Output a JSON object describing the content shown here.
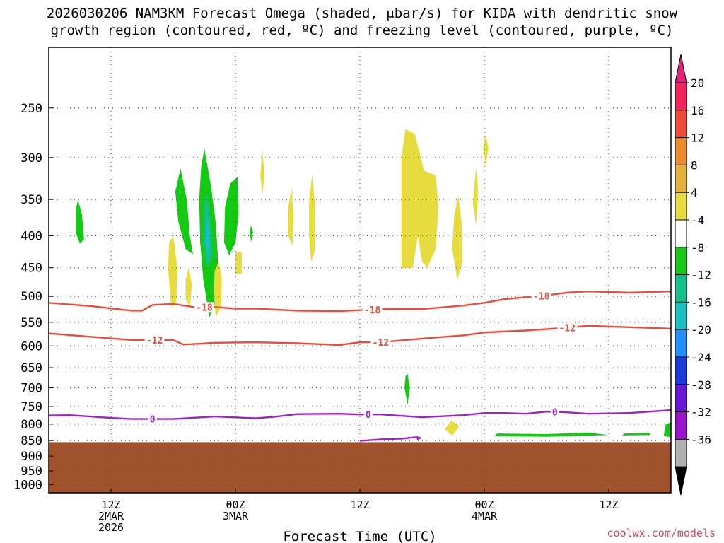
{
  "title_line1": "2026030206 NAM3KM Forecast Omega (shaded, μbar/s) for KIDA with dendritic snow",
  "title_line2": "growth region (contoured, red, ºC) and freezing level (contoured, purple, ºC)",
  "credit": "coolwx.com/models",
  "chart_data": {
    "type": "time-height cross section",
    "title": "2026030206 NAM3KM Forecast Omega (shaded, μbar/s) for KIDA with dendritic snow growth region (contoured, red, ºC) and freezing level (contoured, purple, ºC)",
    "xlabel": "Forecast Time (UTC)",
    "ylabel": "",
    "x_range_hours": [
      0,
      60
    ],
    "y_axis": {
      "scale": "log-pressure",
      "range_mb": [
        200,
        1030
      ],
      "ticks": [
        250,
        300,
        350,
        400,
        450,
        500,
        550,
        600,
        650,
        700,
        750,
        800,
        850,
        900,
        950,
        1000
      ]
    },
    "x_ticks": [
      {
        "hour": 6,
        "label": [
          "12Z",
          "2MAR",
          "2026"
        ]
      },
      {
        "hour": 18,
        "label": [
          "00Z",
          "3MAR"
        ]
      },
      {
        "hour": 30,
        "label": [
          "12Z"
        ]
      },
      {
        "hour": 42,
        "label": [
          "00Z",
          "4MAR"
        ]
      },
      {
        "hour": 54,
        "label": [
          "12Z"
        ]
      }
    ],
    "grid": true,
    "terrain_pressure_mb": 855,
    "colorbar": {
      "labels": [
        "20",
        "16",
        "12",
        "8",
        "4",
        "-4",
        "-8",
        "-12",
        "-16",
        "-20",
        "-24",
        "-28",
        "-32",
        "-36"
      ],
      "colors": [
        "#f2245b",
        "#ef4a3a",
        "#ef8a2a",
        "#e6b13a",
        "#e6dc40",
        "#ffffff",
        "#14c814",
        "#14c08a",
        "#18c0c0",
        "#1e90ff",
        "#1a3cdc",
        "#6a18d8",
        "#9c14cc",
        "#b0b0b0"
      ],
      "top_color": "#e8207a",
      "bottom_color": "#000000"
    },
    "contours": [
      {
        "name": "-18",
        "color": "#ef4a3a",
        "labels": [
          {
            "hour": 15.0,
            "text": "-18"
          },
          {
            "hour": 31.2,
            "text": "-18"
          },
          {
            "hour": 47.5,
            "text": "-18"
          }
        ],
        "points": [
          [
            0,
            512
          ],
          [
            4,
            518
          ],
          [
            8,
            527
          ],
          [
            9,
            527
          ],
          [
            10,
            516
          ],
          [
            12,
            514
          ],
          [
            14,
            520
          ],
          [
            16,
            520
          ],
          [
            18,
            523
          ],
          [
            20,
            523
          ],
          [
            24,
            527
          ],
          [
            28,
            528
          ],
          [
            32,
            524
          ],
          [
            36,
            524
          ],
          [
            40,
            517
          ],
          [
            42,
            512
          ],
          [
            44,
            505
          ],
          [
            48,
            498
          ],
          [
            50,
            493
          ],
          [
            52,
            491
          ],
          [
            56,
            493
          ],
          [
            60,
            491
          ]
        ]
      },
      {
        "name": "-12",
        "color": "#ef4a3a",
        "labels": [
          {
            "hour": 10.2,
            "text": "-12"
          },
          {
            "hour": 32.0,
            "text": "-12"
          },
          {
            "hour": 50.0,
            "text": "-12"
          }
        ],
        "points": [
          [
            0,
            573
          ],
          [
            4,
            580
          ],
          [
            8,
            587
          ],
          [
            12,
            587
          ],
          [
            13,
            597
          ],
          [
            16,
            593
          ],
          [
            20,
            592
          ],
          [
            24,
            594
          ],
          [
            28,
            598
          ],
          [
            30,
            592
          ],
          [
            32,
            592
          ],
          [
            36,
            584
          ],
          [
            40,
            577
          ],
          [
            42,
            571
          ],
          [
            46,
            567
          ],
          [
            50,
            561
          ],
          [
            52,
            557
          ],
          [
            56,
            560
          ],
          [
            60,
            563
          ]
        ]
      },
      {
        "name": "0",
        "color": "#a020c8",
        "labels": [
          {
            "hour": 10.0,
            "text": "0"
          },
          {
            "hour": 30.8,
            "text": "0"
          },
          {
            "hour": 48.8,
            "text": "0"
          }
        ],
        "points": [
          [
            0,
            775
          ],
          [
            2,
            774
          ],
          [
            4,
            778
          ],
          [
            6,
            782
          ],
          [
            8,
            785
          ],
          [
            12,
            785
          ],
          [
            16,
            778
          ],
          [
            20,
            783
          ],
          [
            22,
            778
          ],
          [
            24,
            771
          ],
          [
            28,
            770
          ],
          [
            30,
            772
          ],
          [
            32,
            772
          ],
          [
            36,
            780
          ],
          [
            40,
            774
          ],
          [
            42,
            768
          ],
          [
            44,
            768
          ],
          [
            46,
            770
          ],
          [
            48,
            764
          ],
          [
            50,
            766
          ],
          [
            52,
            770
          ],
          [
            56,
            768
          ],
          [
            60,
            760
          ]
        ]
      },
      {
        "name": "0-lower",
        "color": "#a020c8",
        "labels": [],
        "points": [
          [
            30,
            851
          ],
          [
            32,
            846
          ],
          [
            34,
            844
          ],
          [
            35.5,
            839
          ],
          [
            35.8,
            842
          ],
          [
            35.5,
            846
          ]
        ]
      }
    ],
    "omega_areas": [
      {
        "value": -8,
        "points": [
          [
            2.8,
            350
          ],
          [
            3.2,
            370
          ],
          [
            3.4,
            405
          ],
          [
            3.0,
            412
          ],
          [
            2.6,
            395
          ],
          [
            2.6,
            365
          ]
        ]
      },
      {
        "value": -8,
        "points": [
          [
            12.7,
            312
          ],
          [
            13.3,
            350
          ],
          [
            13.6,
            400
          ],
          [
            13.9,
            428
          ],
          [
            13.2,
            420
          ],
          [
            12.5,
            380
          ],
          [
            12.2,
            340
          ]
        ]
      },
      {
        "value": -8,
        "points": [
          [
            15.0,
            290
          ],
          [
            15.6,
            330
          ],
          [
            16.1,
            380
          ],
          [
            16.3,
            430
          ],
          [
            16.3,
            500
          ],
          [
            15.5,
            540
          ],
          [
            14.9,
            470
          ],
          [
            14.6,
            410
          ],
          [
            14.5,
            350
          ],
          [
            14.7,
            310
          ]
        ]
      },
      {
        "value": -8,
        "points": [
          [
            18.2,
            322
          ],
          [
            18.3,
            370
          ],
          [
            18.0,
            410
          ],
          [
            17.4,
            430
          ],
          [
            16.9,
            410
          ],
          [
            17.0,
            360
          ],
          [
            17.5,
            330
          ]
        ]
      },
      {
        "value": -8,
        "points": [
          [
            19.5,
            385
          ],
          [
            19.7,
            395
          ],
          [
            19.5,
            410
          ],
          [
            19.4,
            395
          ]
        ]
      },
      {
        "value": -8,
        "points": [
          [
            34.6,
            665
          ],
          [
            34.8,
            700
          ],
          [
            34.6,
            745
          ],
          [
            34.3,
            700
          ],
          [
            34.4,
            670
          ]
        ]
      },
      {
        "value": -8,
        "points": [
          [
            43.2,
            828
          ],
          [
            48,
            830
          ],
          [
            52,
            825
          ],
          [
            54,
            833
          ],
          [
            48,
            838
          ],
          [
            43,
            836
          ]
        ]
      },
      {
        "value": -8,
        "points": [
          [
            55.5,
            828
          ],
          [
            58,
            826
          ],
          [
            58,
            833
          ],
          [
            55.3,
            834
          ]
        ]
      },
      {
        "value": -8,
        "points": [
          [
            59.5,
            800
          ],
          [
            60,
            795
          ],
          [
            60,
            840
          ],
          [
            59.3,
            835
          ]
        ]
      },
      {
        "value": -12,
        "points": [
          [
            15.2,
            340
          ],
          [
            15.6,
            380
          ],
          [
            15.8,
            430
          ],
          [
            15.3,
            450
          ],
          [
            14.9,
            410
          ],
          [
            15.0,
            360
          ]
        ]
      },
      {
        "value": -16,
        "points": [
          [
            15.3,
            375
          ],
          [
            15.5,
            400
          ],
          [
            15.4,
            430
          ],
          [
            15.1,
            410
          ]
        ]
      },
      {
        "value": 4,
        "points": [
          [
            20.6,
            292
          ],
          [
            20.8,
            320
          ],
          [
            20.6,
            345
          ],
          [
            20.4,
            320
          ]
        ]
      },
      {
        "value": 4,
        "points": [
          [
            12.0,
            400
          ],
          [
            12.4,
            450
          ],
          [
            12.3,
            510
          ],
          [
            11.8,
            520
          ],
          [
            11.5,
            450
          ],
          [
            11.6,
            410
          ]
        ]
      },
      {
        "value": 4,
        "points": [
          [
            13.5,
            450
          ],
          [
            13.8,
            480
          ],
          [
            13.6,
            520
          ],
          [
            13.2,
            505
          ],
          [
            13.2,
            470
          ]
        ]
      },
      {
        "value": 4,
        "points": [
          [
            16.4,
            440
          ],
          [
            16.7,
            470
          ],
          [
            16.6,
            520
          ],
          [
            16.1,
            540
          ],
          [
            15.9,
            490
          ],
          [
            16.0,
            455
          ]
        ]
      },
      {
        "value": 4,
        "points": [
          [
            18.0,
            425
          ],
          [
            18.6,
            425
          ],
          [
            18.6,
            460
          ],
          [
            18.0,
            460
          ]
        ]
      },
      {
        "value": 4,
        "points": [
          [
            23.4,
            335
          ],
          [
            23.6,
            370
          ],
          [
            23.5,
            415
          ],
          [
            23.1,
            400
          ],
          [
            23.1,
            360
          ]
        ]
      },
      {
        "value": 4,
        "points": [
          [
            25.4,
            320
          ],
          [
            25.7,
            360
          ],
          [
            25.7,
            420
          ],
          [
            25.3,
            440
          ],
          [
            25.1,
            400
          ],
          [
            25.1,
            350
          ]
        ]
      },
      {
        "value": 4,
        "points": [
          [
            34.4,
            270
          ],
          [
            35.3,
            275
          ],
          [
            36.2,
            315
          ],
          [
            37.3,
            320
          ],
          [
            37.6,
            360
          ],
          [
            37.3,
            420
          ],
          [
            36.5,
            450
          ],
          [
            36.0,
            440
          ],
          [
            35.6,
            400
          ],
          [
            35.1,
            450
          ],
          [
            34.0,
            450
          ],
          [
            34.0,
            350
          ],
          [
            34.0,
            300
          ]
        ]
      },
      {
        "value": 4,
        "points": [
          [
            39.5,
            345
          ],
          [
            39.9,
            390
          ],
          [
            39.9,
            440
          ],
          [
            39.4,
            470
          ],
          [
            38.9,
            420
          ],
          [
            39.1,
            370
          ]
        ]
      },
      {
        "value": 4,
        "points": [
          [
            41.2,
            310
          ],
          [
            41.4,
            340
          ],
          [
            41.2,
            385
          ],
          [
            40.9,
            355
          ]
        ]
      },
      {
        "value": 4,
        "points": [
          [
            42.1,
            275
          ],
          [
            42.4,
            290
          ],
          [
            42.1,
            310
          ],
          [
            41.9,
            290
          ]
        ]
      },
      {
        "value": 4,
        "points": [
          [
            38.8,
            790
          ],
          [
            39.6,
            805
          ],
          [
            38.9,
            835
          ],
          [
            38.2,
            815
          ]
        ]
      }
    ]
  }
}
